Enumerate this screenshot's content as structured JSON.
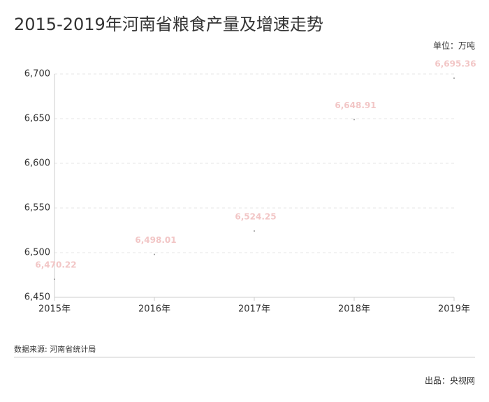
{
  "chart_data": {
    "type": "scatter",
    "title": "2015-2019年河南省粮食产量及增速走势",
    "unit": "单位：万吨",
    "categories": [
      "2015年",
      "2016年",
      "2017年",
      "2018年",
      "2019年"
    ],
    "values": [
      6470.22,
      6498.01,
      6524.25,
      6648.91,
      6695.36
    ],
    "value_labels": [
      "6,470.22",
      "6,498.01",
      "6,524.25",
      "6,648.91",
      "6,695.36"
    ],
    "color": "#999999",
    "label_color": "#f2c6c6",
    "ylim": [
      6450,
      6700
    ],
    "yticks": [
      {
        "value": 6450,
        "label": "6,450"
      },
      {
        "value": 6500,
        "label": "6,500"
      },
      {
        "value": 6550,
        "label": "6,550"
      },
      {
        "value": 6600,
        "label": "6,600"
      },
      {
        "value": 6650,
        "label": "6,650"
      },
      {
        "value": 6700,
        "label": "6,700"
      }
    ],
    "grid": true,
    "source": "数据来源: 河南省统计局",
    "credit": "出品：央视网"
  }
}
